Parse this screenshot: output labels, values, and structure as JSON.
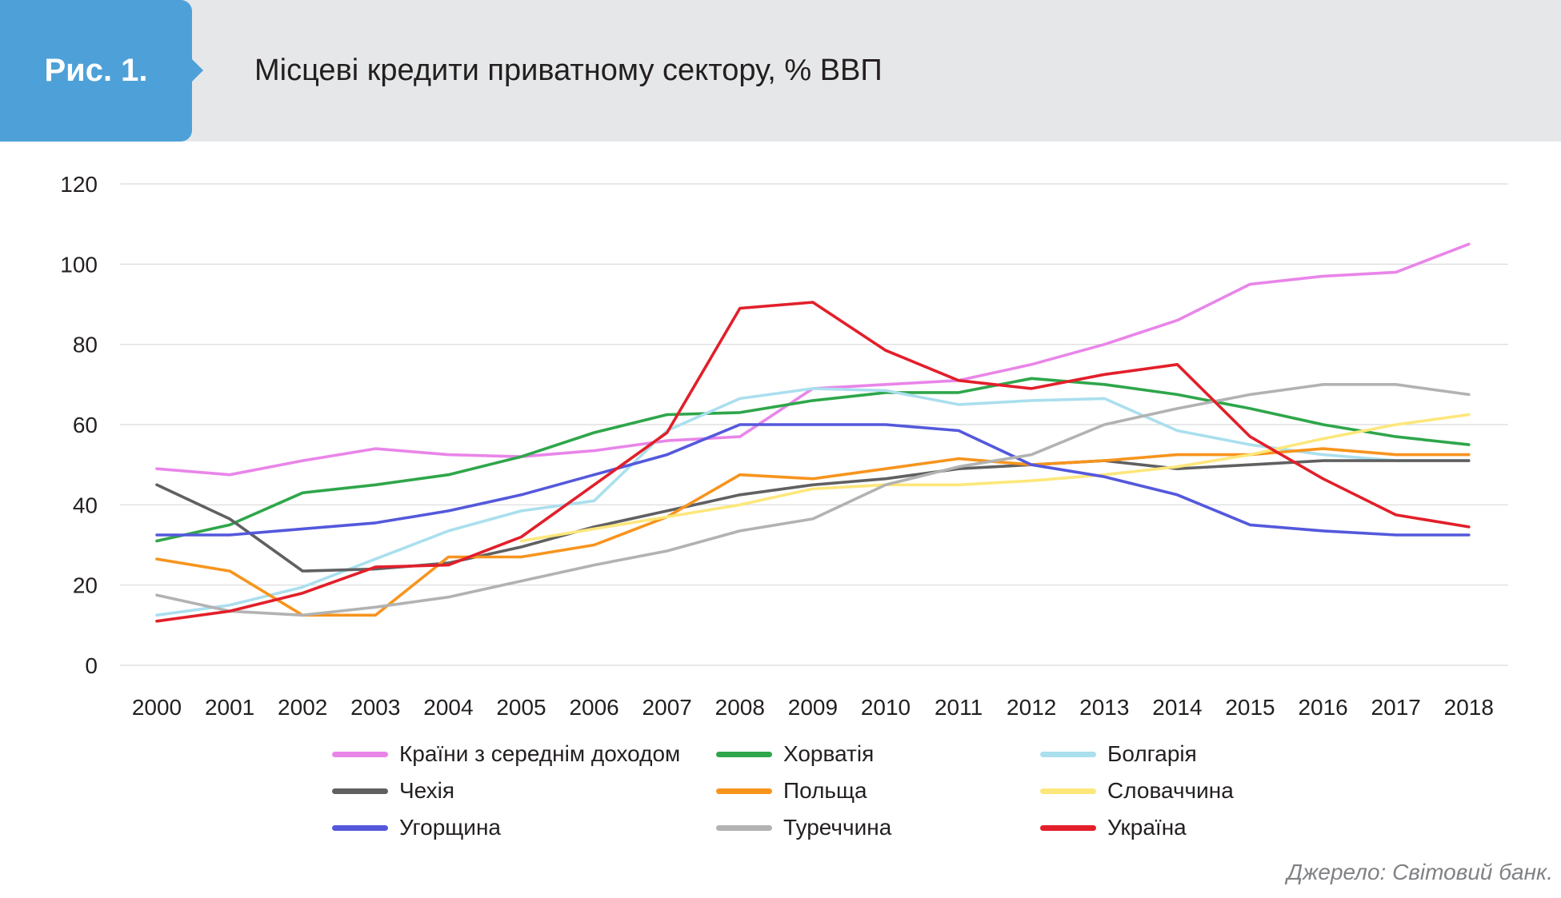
{
  "header": {
    "figure_label": "Рис. 1.",
    "title": "Місцеві кредити приватному сектору, % ВВП"
  },
  "source": "Джерело: Світовий банк.",
  "chart_data": {
    "type": "line",
    "categories": [
      "2000",
      "2001",
      "2002",
      "2003",
      "2004",
      "2005",
      "2006",
      "2007",
      "2008",
      "2009",
      "2010",
      "2011",
      "2012",
      "2013",
      "2014",
      "2015",
      "2016",
      "2017",
      "2018"
    ],
    "ylim": [
      0,
      120
    ],
    "yticks": [
      "0",
      "20",
      "40",
      "60",
      "80",
      "100",
      "120"
    ],
    "grid": true,
    "legend_placement": "bottom",
    "series": [
      {
        "name": "Країни з середнім доходом",
        "color": "#e985e9",
        "values": [
          49,
          47.5,
          51,
          54,
          52.5,
          52,
          53.5,
          56,
          57,
          69,
          70,
          71,
          75,
          80,
          86,
          95,
          97,
          98,
          105
        ]
      },
      {
        "name": "Хорватія",
        "color": "#2ea64a",
        "values": [
          31,
          35,
          43,
          45,
          47.5,
          52,
          58,
          62.5,
          63,
          66,
          68,
          68,
          71.5,
          70,
          67.5,
          64,
          60,
          57,
          55
        ]
      },
      {
        "name": "Болгарія",
        "color": "#aadfee",
        "values": [
          12.5,
          15,
          19.5,
          26.5,
          33.5,
          38.5,
          41,
          58.5,
          66.5,
          69,
          68.5,
          65,
          66,
          66.5,
          58.5,
          55,
          52.5,
          51,
          51
        ]
      },
      {
        "name": "Чехія",
        "color": "#606062",
        "values": [
          45,
          36.5,
          23.5,
          24,
          25.5,
          29.5,
          34.5,
          38.5,
          42.5,
          45,
          46.5,
          49,
          50,
          51,
          49,
          50,
          51,
          51,
          51
        ]
      },
      {
        "name": "Польща",
        "color": "#f7941d",
        "values": [
          26.5,
          23.5,
          12.5,
          12.5,
          27,
          27,
          30,
          37,
          47.5,
          46.5,
          49,
          51.5,
          50,
          51,
          52.5,
          52.5,
          54,
          52.5,
          52.5
        ]
      },
      {
        "name": "Словаччина",
        "color": "#fde77a",
        "values": [
          null,
          null,
          null,
          null,
          null,
          31,
          34,
          37,
          40,
          44,
          45,
          45,
          46,
          47.5,
          49.5,
          52.5,
          56.5,
          60,
          62.5
        ]
      },
      {
        "name": "Угорщина",
        "color": "#5458dc",
        "values": [
          32.5,
          32.5,
          34,
          35.5,
          38.5,
          42.5,
          47.5,
          52.5,
          60,
          60,
          60,
          58.5,
          50,
          47,
          42.5,
          35,
          33.5,
          32.5,
          32.5
        ]
      },
      {
        "name": "Туреччина",
        "color": "#b2b2b2",
        "values": [
          17.5,
          13.5,
          12.5,
          14.5,
          17,
          21,
          25,
          28.5,
          33.5,
          36.5,
          45,
          49.5,
          52.5,
          60,
          64,
          67.5,
          70,
          70,
          67.5
        ]
      },
      {
        "name": "Україна",
        "color": "#e21f2a",
        "values": [
          11,
          13.5,
          18,
          24.5,
          25,
          32,
          45,
          58,
          89,
          90.5,
          78.5,
          71,
          69,
          72.5,
          75,
          57,
          46.5,
          37.5,
          34.5
        ]
      }
    ]
  }
}
